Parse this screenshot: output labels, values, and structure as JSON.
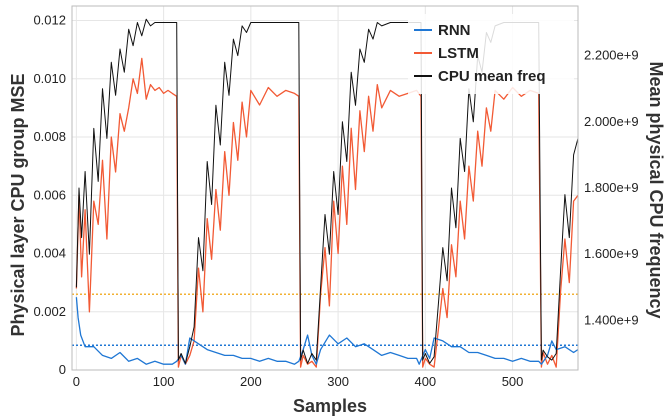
{
  "chart_data": {
    "type": "line",
    "title": "",
    "xlabel": "Samples",
    "ylabel_left": "Physical layer CPU group MSE",
    "ylabel_right": "Mean physical CPU frequency",
    "xlim": [
      -5,
      575
    ],
    "ylim_left": [
      0,
      0.0125
    ],
    "ylim_right": [
      1250000000,
      2350000000
    ],
    "x_ticks": [
      0,
      100,
      200,
      300,
      400,
      500
    ],
    "y_left_ticks": [
      0,
      0.002,
      0.004,
      0.006,
      0.008,
      0.01,
      0.012
    ],
    "y_right_ticks": [
      1400000000,
      1600000000,
      1800000000,
      2000000000,
      2200000000
    ],
    "y_right_tick_labels": [
      "1.400e+9",
      "1.600e+9",
      "1.800e+9",
      "2.000e+9",
      "2.200e+9"
    ],
    "grid": true,
    "legend_position": "top-right",
    "series": [
      {
        "name": "RNN",
        "axis": "left",
        "color": "#1f77d4",
        "x": [
          0,
          2,
          5,
          10,
          20,
          30,
          40,
          50,
          60,
          70,
          80,
          90,
          100,
          110,
          115,
          120,
          125,
          130,
          140,
          150,
          160,
          170,
          180,
          190,
          200,
          210,
          220,
          230,
          240,
          250,
          255,
          260,
          265,
          270,
          275,
          280,
          290,
          300,
          310,
          320,
          330,
          340,
          350,
          360,
          370,
          380,
          390,
          393,
          400,
          405,
          410,
          420,
          430,
          440,
          450,
          460,
          470,
          480,
          490,
          500,
          510,
          520,
          530,
          533,
          540,
          545,
          550,
          560,
          570,
          575
        ],
        "values": [
          0.0025,
          0.0018,
          0.0012,
          0.0008,
          0.0008,
          0.0005,
          0.0004,
          0.0006,
          0.0003,
          0.0004,
          0.0002,
          0.0003,
          0.0002,
          0.0002,
          0.0003,
          0.0005,
          0.0002,
          0.0011,
          0.0009,
          0.0007,
          0.0006,
          0.0005,
          0.0005,
          0.0004,
          0.0004,
          0.0003,
          0.0004,
          0.0003,
          0.0003,
          0.0002,
          0.0003,
          0.0007,
          0.0012,
          0.0005,
          0.0002,
          0.0007,
          0.0012,
          0.0009,
          0.0011,
          0.0008,
          0.0009,
          0.0007,
          0.0005,
          0.0006,
          0.0005,
          0.0004,
          0.0004,
          0.0002,
          0.0007,
          0.0004,
          0.0011,
          0.001,
          0.0008,
          0.0008,
          0.0006,
          0.0006,
          0.0005,
          0.0004,
          0.0004,
          0.0003,
          0.0004,
          0.0003,
          0.0003,
          0.0002,
          0.0005,
          0.001,
          0.0007,
          0.0008,
          0.0006,
          0.0007
        ]
      },
      {
        "name": "LSTM",
        "axis": "left",
        "color": "#f25a35",
        "x": [
          0,
          3,
          6,
          10,
          15,
          20,
          25,
          30,
          35,
          40,
          45,
          50,
          55,
          60,
          65,
          70,
          75,
          80,
          85,
          90,
          95,
          100,
          105,
          110,
          115,
          117,
          120,
          125,
          130,
          135,
          140,
          145,
          150,
          155,
          160,
          165,
          170,
          175,
          180,
          185,
          190,
          195,
          200,
          210,
          220,
          230,
          240,
          250,
          255,
          257,
          260,
          265,
          270,
          275,
          280,
          285,
          290,
          295,
          300,
          305,
          310,
          315,
          320,
          325,
          330,
          335,
          340,
          345,
          350,
          360,
          370,
          380,
          390,
          395,
          397,
          400,
          405,
          410,
          415,
          420,
          425,
          430,
          435,
          440,
          445,
          450,
          455,
          460,
          465,
          470,
          475,
          480,
          490,
          500,
          510,
          520,
          530,
          533,
          535,
          540,
          545,
          550,
          555,
          560,
          565,
          570,
          575
        ],
        "values": [
          0.0028,
          0.006,
          0.0032,
          0.0055,
          0.002,
          0.0058,
          0.005,
          0.0072,
          0.0045,
          0.008,
          0.0068,
          0.0088,
          0.0082,
          0.009,
          0.01,
          0.0095,
          0.0107,
          0.0093,
          0.0098,
          0.0096,
          0.0097,
          0.0095,
          0.0096,
          0.0095,
          0.0094,
          0.0001,
          0.0005,
          0.0002,
          0.0005,
          0.001,
          0.0035,
          0.002,
          0.0052,
          0.0038,
          0.0062,
          0.0048,
          0.0075,
          0.006,
          0.0085,
          0.0072,
          0.0092,
          0.008,
          0.0096,
          0.0091,
          0.0097,
          0.0094,
          0.0096,
          0.0095,
          0.0094,
          0.0001,
          0.0005,
          0.0002,
          0.0003,
          0.0001,
          0.0026,
          0.0042,
          0.0022,
          0.0058,
          0.004,
          0.007,
          0.005,
          0.0083,
          0.0062,
          0.0089,
          0.0075,
          0.0094,
          0.0082,
          0.0098,
          0.009,
          0.0096,
          0.0094,
          0.0095,
          0.0096,
          0.0094,
          0.0001,
          0.0004,
          0.0002,
          0.0001,
          0.0014,
          0.0028,
          0.0018,
          0.0043,
          0.0032,
          0.0058,
          0.0045,
          0.007,
          0.0058,
          0.0082,
          0.007,
          0.009,
          0.0082,
          0.0096,
          0.0093,
          0.0097,
          0.0094,
          0.0096,
          0.0095,
          0.0001,
          0.0006,
          0.0002,
          0.0005,
          0.0001,
          0.0027,
          0.0045,
          0.003,
          0.0058,
          0.006
        ]
      },
      {
        "name": "CPU mean freq",
        "axis": "right",
        "color": "#111111",
        "x": [
          0,
          3,
          6,
          10,
          15,
          20,
          25,
          30,
          35,
          40,
          45,
          50,
          55,
          60,
          65,
          70,
          75,
          80,
          85,
          90,
          95,
          100,
          110,
          115,
          117,
          120,
          125,
          130,
          135,
          140,
          145,
          150,
          155,
          160,
          165,
          170,
          175,
          180,
          185,
          190,
          195,
          200,
          210,
          220,
          230,
          240,
          250,
          255,
          257,
          260,
          265,
          270,
          275,
          280,
          285,
          290,
          295,
          300,
          305,
          310,
          315,
          320,
          325,
          330,
          335,
          340,
          345,
          350,
          360,
          370,
          380,
          390,
          395,
          397,
          400,
          405,
          410,
          415,
          420,
          425,
          430,
          435,
          440,
          445,
          450,
          455,
          460,
          465,
          470,
          475,
          480,
          490,
          500,
          510,
          520,
          530,
          533,
          535,
          540,
          545,
          550,
          555,
          560,
          565,
          570,
          575
        ],
        "values": [
          1500000000,
          1800000000,
          1650000000,
          1850000000,
          1600000000,
          1980000000,
          1820000000,
          2100000000,
          1950000000,
          2180000000,
          2080000000,
          2220000000,
          2150000000,
          2280000000,
          2230000000,
          2300000000,
          2260000000,
          2310000000,
          2290000000,
          2300000000,
          2300000000,
          2300000000,
          2300000000,
          2300000000,
          1280000000,
          1300000000,
          1270000000,
          1320000000,
          1380000000,
          1650000000,
          1550000000,
          1880000000,
          1750000000,
          2050000000,
          1930000000,
          2180000000,
          2080000000,
          2250000000,
          2200000000,
          2290000000,
          2270000000,
          2300000000,
          2300000000,
          2300000000,
          2300000000,
          2300000000,
          2300000000,
          2300000000,
          1280000000,
          1310000000,
          1270000000,
          1300000000,
          1280000000,
          1500000000,
          1720000000,
          1600000000,
          1850000000,
          1720000000,
          2000000000,
          1880000000,
          2150000000,
          2050000000,
          2220000000,
          2180000000,
          2280000000,
          2250000000,
          2300000000,
          2290000000,
          2300000000,
          2300000000,
          2300000000,
          2300000000,
          2300000000,
          1280000000,
          1300000000,
          1270000000,
          1290000000,
          1450000000,
          1620000000,
          1520000000,
          1800000000,
          1680000000,
          1950000000,
          1850000000,
          2100000000,
          2000000000,
          2200000000,
          2150000000,
          2270000000,
          2240000000,
          2290000000,
          2300000000,
          2300000000,
          2300000000,
          2300000000,
          2300000000,
          1280000000,
          1310000000,
          1290000000,
          1280000000,
          1300000000,
          1550000000,
          1780000000,
          1650000000,
          1900000000,
          1950000000
        ]
      }
    ],
    "reference_lines": [
      {
        "axis": "left",
        "value": 0.0026,
        "color": "#f2b134",
        "style": "dotted"
      },
      {
        "axis": "left",
        "value": 0.00085,
        "color": "#1f77d4",
        "style": "dotted"
      }
    ]
  }
}
